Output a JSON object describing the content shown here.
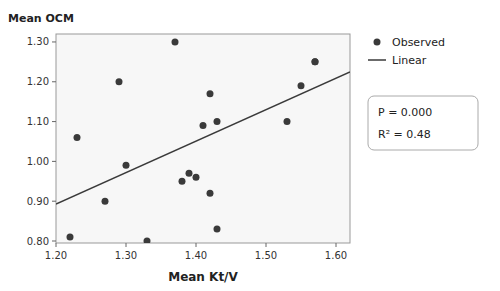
{
  "chart_data": {
    "type": "scatter",
    "xlabel": "Mean Kt/V",
    "ylabel": "Mean OCM",
    "xlim": [
      1.2,
      1.62
    ],
    "ylim": [
      0.795,
      1.32
    ],
    "xticks": [
      {
        "value": 1.2,
        "label": "1.20"
      },
      {
        "value": 1.3,
        "label": "1.30"
      },
      {
        "value": 1.4,
        "label": "1.40"
      },
      {
        "value": 1.5,
        "label": "1.50"
      },
      {
        "value": 1.6,
        "label": "1.60"
      }
    ],
    "yticks": [
      {
        "value": 0.8,
        "label": "0.80"
      },
      {
        "value": 0.9,
        "label": "0.90"
      },
      {
        "value": 1.0,
        "label": "1.00"
      },
      {
        "value": 1.1,
        "label": "1.10"
      },
      {
        "value": 1.2,
        "label": "1.20"
      },
      {
        "value": 1.3,
        "label": "1.30"
      }
    ],
    "grid": false,
    "legend": "right",
    "series": [
      {
        "name": "Observed",
        "type": "scatter",
        "marker": "circle",
        "color": "#3a3a3a",
        "x": [
          1.22,
          1.23,
          1.27,
          1.29,
          1.3,
          1.33,
          1.37,
          1.38,
          1.39,
          1.4,
          1.41,
          1.42,
          1.42,
          1.43,
          1.43,
          1.53,
          1.55,
          1.57,
          1.57
        ],
        "values": [
          0.81,
          1.06,
          0.9,
          1.2,
          0.99,
          0.8,
          1.3,
          0.95,
          0.97,
          0.96,
          1.09,
          1.17,
          0.92,
          0.83,
          1.1,
          1.1,
          1.19,
          1.25,
          1.25
        ]
      },
      {
        "name": "Linear",
        "type": "line",
        "line_style": "solid",
        "color": "#3a3a3a",
        "x": [
          1.2,
          1.62
        ],
        "values": [
          0.893,
          1.225
        ]
      }
    ],
    "annotations": [
      "P = 0.000",
      "R² = 0.48"
    ]
  }
}
